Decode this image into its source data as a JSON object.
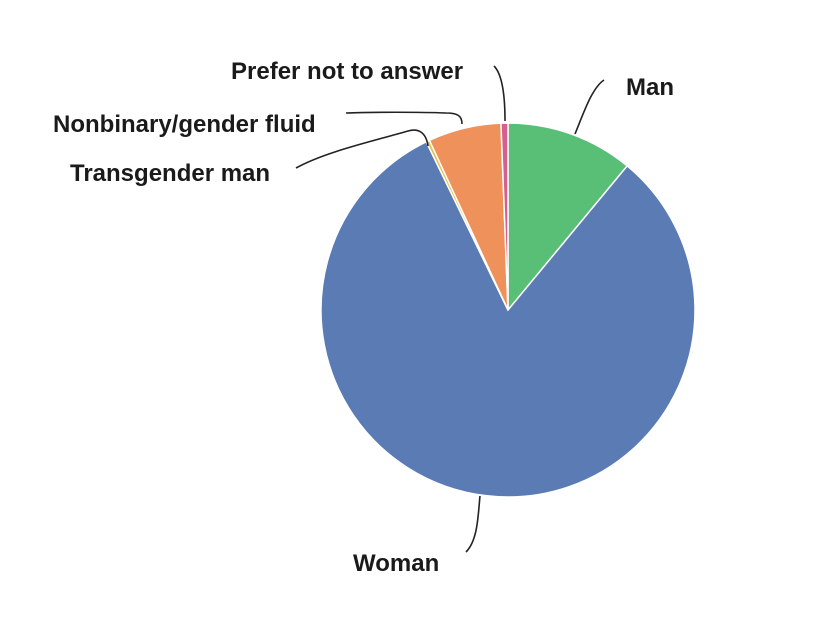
{
  "chart_data": {
    "type": "pie",
    "title": "",
    "start": "top",
    "direction": "clockwise",
    "slices": [
      {
        "name": "Man",
        "value": 11.0,
        "color": "#5abf76"
      },
      {
        "name": "Woman",
        "value": 81.8,
        "color": "#5a7bb3"
      },
      {
        "name": "Transgender man",
        "value": 0.3,
        "color": "#e7c04f"
      },
      {
        "name": "Nonbinary/gender fluid",
        "value": 6.3,
        "color": "#ef915b"
      },
      {
        "name": "Prefer not to answer",
        "value": 0.6,
        "color": "#d3608e"
      }
    ]
  }
}
